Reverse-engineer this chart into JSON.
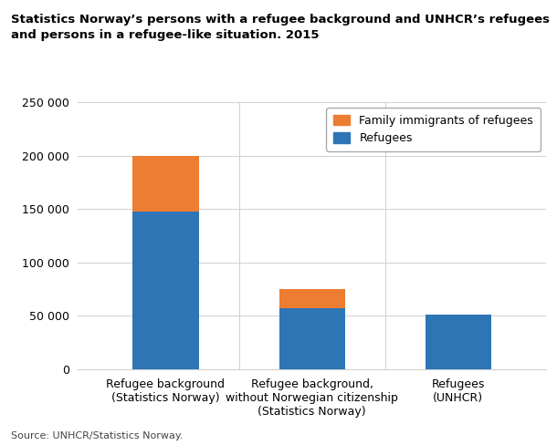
{
  "title_line1": "Statistics Norway’s persons with a refugee background and UNHCR’s refugees",
  "title_line2": "and persons in a refugee-like situation. 2015",
  "categories": [
    "Refugee background\n(Statistics Norway)",
    "Refugee background,\nwithout Norwegian citizenship\n(Statistics Norway)",
    "Refugees\n(UNHCR)"
  ],
  "refugees": [
    148000,
    57000,
    51000
  ],
  "family_immigrants": [
    52000,
    18000,
    0
  ],
  "refugee_color": "#2e75b6",
  "family_color": "#ed7d31",
  "ylim": [
    0,
    250000
  ],
  "yticks": [
    0,
    50000,
    100000,
    150000,
    200000,
    250000
  ],
  "ytick_labels": [
    "0",
    "50 000",
    "100 000",
    "150 000",
    "200 000",
    "250 000"
  ],
  "legend_label_family": "Family immigrants of refugees",
  "legend_label_refugees": "Refugees",
  "source_text": "Source: UNHCR/Statistics Norway.",
  "background_color": "#ffffff",
  "bar_width": 0.45
}
